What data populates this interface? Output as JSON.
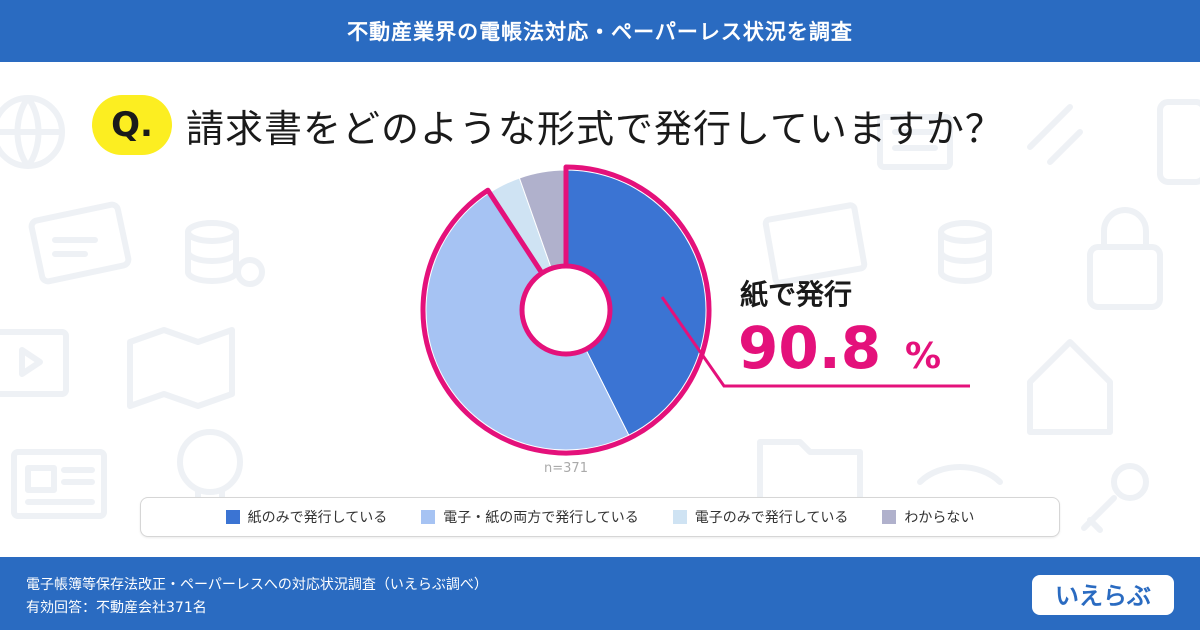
{
  "header": {
    "title": "不動産業界の電帳法対応・ペーパーレス状況を調査"
  },
  "question": {
    "badge": "Q.",
    "text": "請求書をどのような形式で発行していますか？"
  },
  "chart_data": {
    "type": "pie",
    "n_label": "n=371",
    "categories": [
      "紙のみで発行している",
      "電子・紙の両方で発行している",
      "電子のみで発行している",
      "わからない"
    ],
    "values": [
      42.6,
      48.2,
      3.8,
      5.4
    ],
    "colors": [
      "#3b74d3",
      "#a6c3f3",
      "#cfe3f3",
      "#b0b1cc"
    ],
    "annotation": {
      "label": "紙で発行",
      "value": "90.8",
      "unit": "%"
    },
    "highlight_color": "#e4117b"
  },
  "legend": {
    "items": [
      {
        "label": "紙のみで発行している",
        "color": "#3b74d3"
      },
      {
        "label": "電子・紙の両方で発行している",
        "color": "#a6c3f3"
      },
      {
        "label": "電子のみで発行している",
        "color": "#cfe3f3"
      },
      {
        "label": "わからない",
        "color": "#b0b1cc"
      }
    ]
  },
  "footer": {
    "source": "電子帳簿等保存法改正・ペーパーレスへの対応状況調査（いえらぶ調べ）",
    "respondents": "有効回答：不動産会社371名",
    "logo_text": "いえらぶ"
  }
}
